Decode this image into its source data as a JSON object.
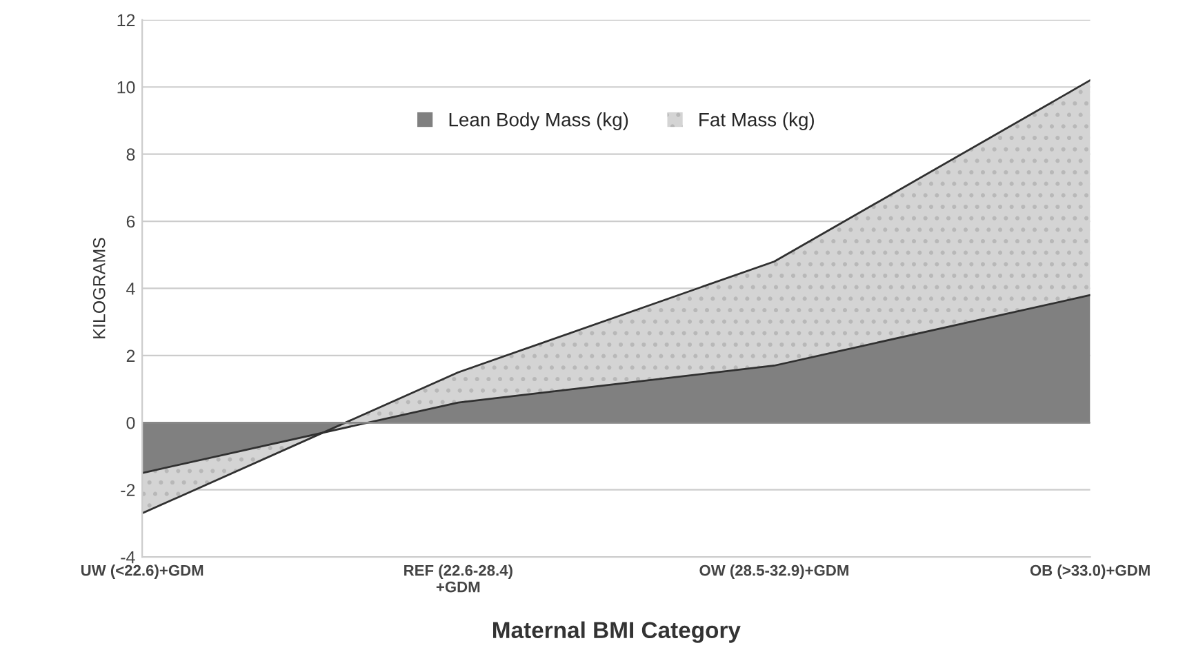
{
  "chart_data": {
    "type": "area",
    "stacked": true,
    "xlabel": "Maternal BMI Category",
    "ylabel": "KILOGRAMS",
    "categories": [
      "UW (<22.6)+GDM",
      "REF (22.6-28.4)\n+GDM",
      "OW (28.5-32.9)+GDM",
      "OB (>33.0)+GDM"
    ],
    "series": [
      {
        "name": "Lean Body Mass (kg)",
        "color": "#808080",
        "values": [
          -1.5,
          0.6,
          1.7,
          3.8
        ]
      },
      {
        "name": "Fat Mass (kg)",
        "color": "#d4d4d4",
        "values": [
          -1.2,
          0.9,
          3.1,
          6.4
        ]
      }
    ],
    "ylim": [
      -4,
      12
    ],
    "yticks": [
      -4,
      -2,
      0,
      2,
      4,
      6,
      8,
      10,
      12
    ],
    "grid": "y",
    "legend": "top"
  }
}
